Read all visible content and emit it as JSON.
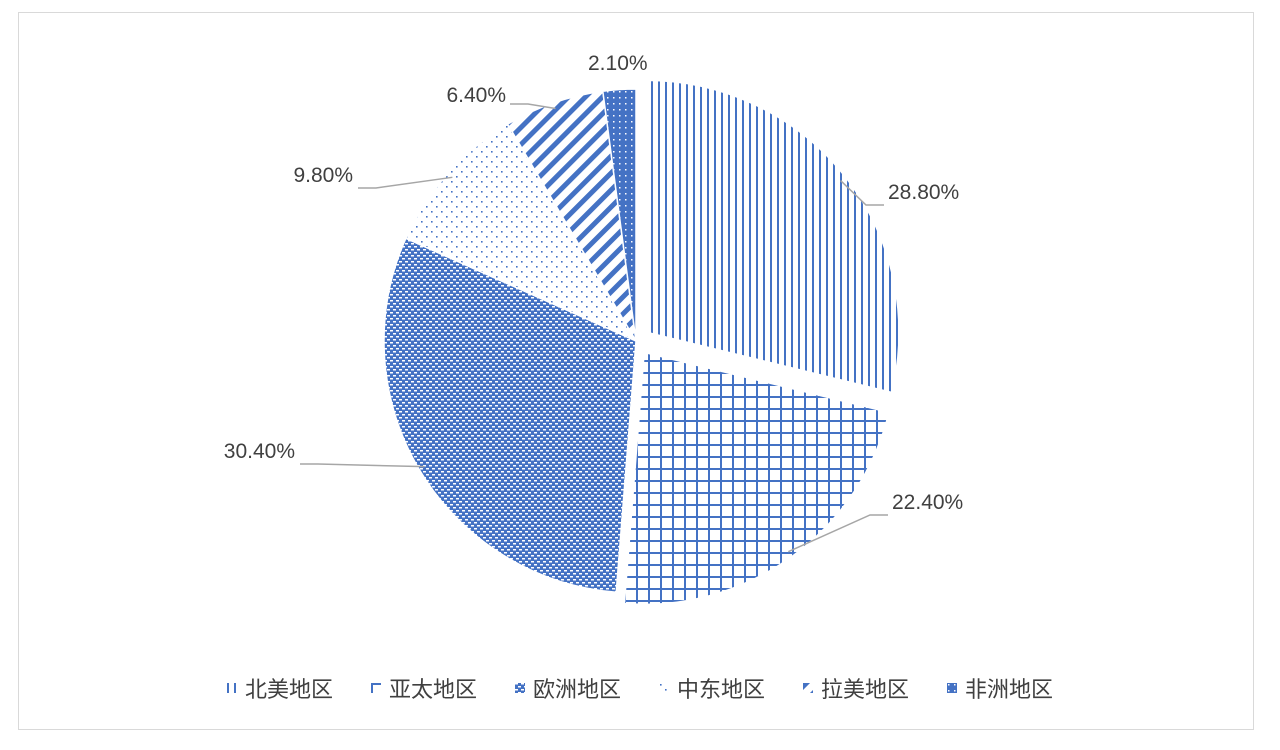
{
  "chart_data": {
    "type": "pie",
    "slices": [
      {
        "name": "北美地区",
        "value": 28.8,
        "label": "28.80%",
        "pattern": "vertical"
      },
      {
        "name": "亚太地区",
        "value": 22.4,
        "label": "22.40%",
        "pattern": "grid"
      },
      {
        "name": "欧洲地区",
        "value": 30.4,
        "label": "30.40%",
        "pattern": "dense"
      },
      {
        "name": "中东地区",
        "value": 9.8,
        "label": "9.80%",
        "pattern": "dots"
      },
      {
        "name": "拉美地区",
        "value": 6.4,
        "label": "6.40%",
        "pattern": "diagonal"
      },
      {
        "name": "非洲地区",
        "value": 2.1,
        "label": "2.10%",
        "pattern": "dotted-solid"
      }
    ],
    "start_angle": "12 o'clock",
    "direction": "clockwise",
    "legend_position": "bottom",
    "colors": {
      "accent": "#4472C4",
      "text": "#404040",
      "leader": "#a6a6a6"
    }
  }
}
